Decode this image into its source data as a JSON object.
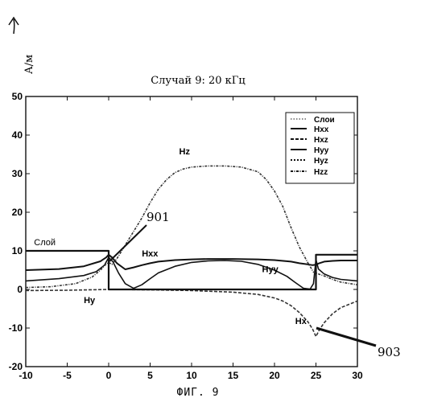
{
  "chart_data": {
    "type": "line",
    "title": "Случай 9: 20 кГц",
    "ylabel": "А/м",
    "xlabel": "",
    "xlim": [
      -10,
      30
    ],
    "ylim": [
      -20,
      50
    ],
    "x_ticks": [
      "-10",
      "-5",
      "0",
      "5",
      "10",
      "15",
      "20",
      "25",
      "30"
    ],
    "y_ticks": [
      "-20",
      "-10",
      "0",
      "10",
      "20",
      "30",
      "40",
      "50"
    ],
    "grid": false,
    "legend_position": "top-right",
    "legend": [
      "Слои",
      "Hxx",
      "Hxz",
      "Hyy",
      "Hyz",
      "Hzz"
    ],
    "series": [
      {
        "name": "Hxx",
        "color": "#111111",
        "x": [
          -10,
          -6,
          -3,
          -1,
          -0.3,
          0,
          0.4,
          1,
          2,
          3,
          4,
          5,
          6,
          8,
          10,
          12,
          15,
          18,
          20,
          22,
          23,
          24,
          24.6,
          25,
          25.4,
          26,
          27,
          28,
          30
        ],
        "y": [
          5,
          5.3,
          6,
          7.3,
          8.3,
          9,
          8.3,
          6.8,
          5.2,
          5.7,
          6.3,
          6.8,
          7.2,
          7.6,
          7.8,
          7.9,
          7.9,
          7.8,
          7.6,
          7.2,
          6.8,
          6.5,
          6.3,
          6.4,
          6.8,
          7.2,
          7.4,
          7.5,
          7.5
        ]
      },
      {
        "name": "Hyy",
        "color": "#111111",
        "x": [
          -10,
          -6,
          -3,
          -1.5,
          -0.5,
          0,
          0.5,
          1.2,
          2,
          3,
          4,
          5,
          6,
          8,
          10,
          12,
          14,
          16,
          18,
          20,
          21.5,
          22.5,
          23.5,
          24.3,
          24.7,
          25,
          25.3,
          26,
          27,
          28,
          30
        ],
        "y": [
          2.2,
          2.8,
          3.6,
          4.6,
          6.3,
          8.3,
          7.2,
          4.2,
          1.5,
          0.3,
          1.2,
          2.8,
          4.3,
          6,
          7,
          7.4,
          7.5,
          7.3,
          6.5,
          5,
          3.4,
          1.8,
          0.3,
          0.1,
          1.5,
          7.7,
          5.3,
          4,
          3.1,
          2.6,
          2.2
        ]
      },
      {
        "name": "Hzz",
        "color": "#333333",
        "x": [
          -10,
          -7,
          -4,
          -2,
          -1,
          -0.4,
          0,
          0.4,
          1,
          2,
          3,
          4,
          5,
          6,
          7,
          8,
          9,
          10,
          12,
          14,
          16,
          18,
          19,
          20,
          21,
          22,
          23,
          24,
          24.7,
          25.3,
          26,
          27,
          28,
          30
        ],
        "y": [
          0.5,
          0.7,
          1.5,
          3.2,
          5,
          6.4,
          7,
          6.5,
          8,
          11.5,
          15,
          18.5,
          22.5,
          26,
          28.5,
          30.3,
          31.2,
          31.7,
          32,
          32,
          31.7,
          30.5,
          28.5,
          25.5,
          21.5,
          16,
          11,
          7,
          4.5,
          4,
          3.5,
          2.6,
          1.9,
          1.2
        ]
      },
      {
        "name": "Hxz",
        "color": "#333333",
        "x": [
          -10,
          -5,
          0,
          5,
          10,
          15,
          18,
          20,
          21,
          22,
          23,
          24,
          24.6,
          25,
          25.4,
          26,
          27,
          28,
          30
        ],
        "y": [
          -0.3,
          -0.2,
          0,
          -0.1,
          -0.3,
          -0.7,
          -1.3,
          -2.2,
          -3,
          -4.2,
          -6,
          -8.3,
          -10.3,
          -12.2,
          -10.5,
          -8.6,
          -6.3,
          -4.7,
          -3
        ]
      },
      {
        "name": "Слои",
        "color": "#111111",
        "x": [
          -10,
          0,
          0,
          25,
          25,
          30
        ],
        "y": [
          10,
          10,
          0,
          0,
          9,
          9
        ]
      }
    ],
    "annotations": [
      {
        "text": "Слой",
        "x": -9,
        "y": 11.5
      },
      {
        "text": "Hz",
        "x": 8.5,
        "y": 35
      },
      {
        "text": "Hxx",
        "x": 4,
        "y": 8.5
      },
      {
        "text": "Hyy",
        "x": 18.5,
        "y": 4.5
      },
      {
        "text": "Hy",
        "x": -3,
        "y": -3.5
      },
      {
        "text": "Hx",
        "x": 22.5,
        "y": -9
      }
    ],
    "reference_numbers": [
      "901",
      "903"
    ]
  },
  "figure_label": "ФИГ. 9",
  "arrow_icon": "curved-up-arrow-icon"
}
